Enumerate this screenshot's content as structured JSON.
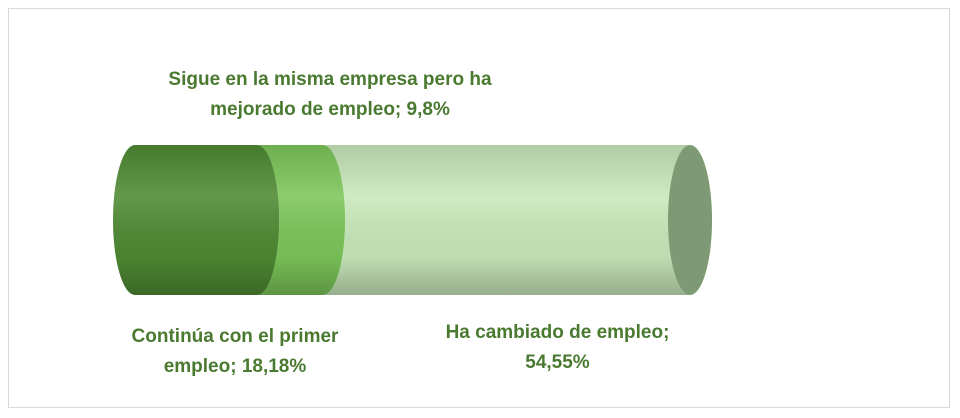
{
  "chart_data": {
    "type": "bar",
    "orientation": "horizontal",
    "stacked": true,
    "shape": "cylinder",
    "xlim": [
      0,
      82.53
    ],
    "series": [
      {
        "name": "Continúa con el primer empleo",
        "color": "#4f8a33",
        "values": [
          18.18
        ],
        "value_labels": [
          "Continúa con el primer empleo; 18,18%"
        ]
      },
      {
        "name": "Sigue en la misma empresa pero ha mejorado de empleo",
        "color": "#7cc659",
        "values": [
          9.8
        ],
        "value_labels": [
          "Sigue en la misma empresa pero ha mejorado de empleo; 9,8%"
        ]
      },
      {
        "name": "Ha cambiado de empleo",
        "color": "#c8e8ba",
        "values": [
          54.55
        ],
        "value_labels": [
          "Ha cambiado de empleo; 54,55%"
        ]
      }
    ]
  }
}
